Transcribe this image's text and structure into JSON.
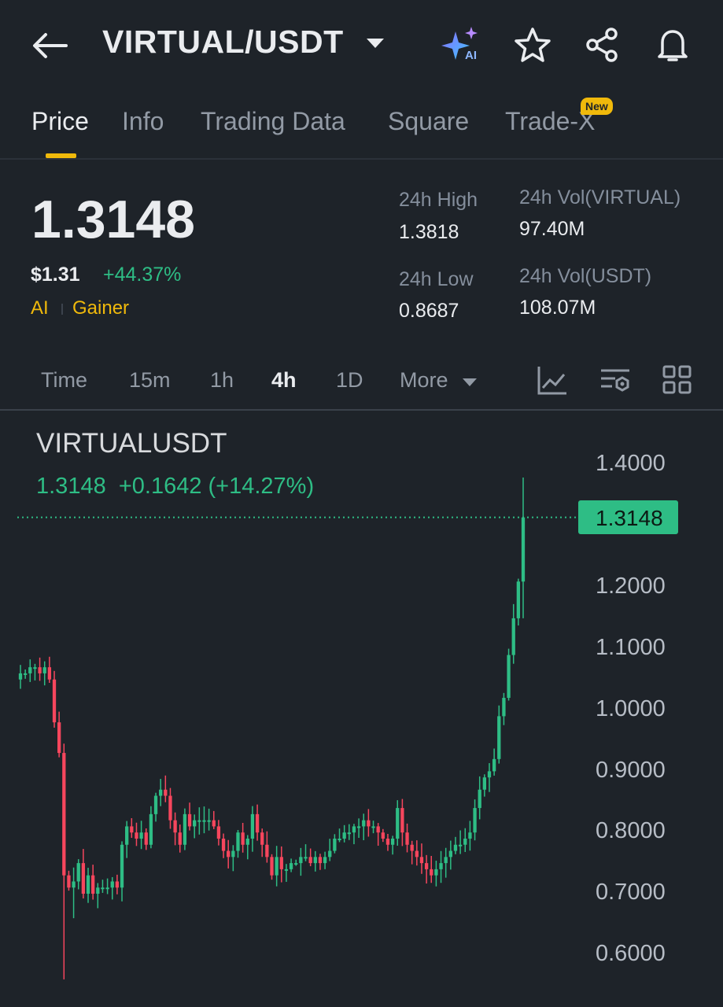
{
  "header": {
    "pair": "VIRTUAL/USDT",
    "icons": [
      "back-arrow-icon",
      "chevron-down-icon",
      "ai-sparkle-icon",
      "star-icon",
      "share-icon",
      "bell-icon"
    ],
    "ai_badge": "AI"
  },
  "tabs": [
    {
      "label": "Price",
      "active": true
    },
    {
      "label": "Info"
    },
    {
      "label": "Trading Data"
    },
    {
      "label": "Square"
    },
    {
      "label": "Trade-X",
      "badge": "New"
    }
  ],
  "ticker": {
    "last_price": "1.3148",
    "usd_price": "$1.31",
    "change_24h": "+44.37%",
    "tags": [
      "AI",
      "Gainer"
    ],
    "high_label": "24h High",
    "high_value": "1.3818",
    "low_label": "24h Low",
    "low_value": "0.8687",
    "vol_base_label": "24h Vol(VIRTUAL)",
    "vol_base_value": "97.40M",
    "vol_quote_label": "24h Vol(USDT)",
    "vol_quote_value": "108.07M"
  },
  "timeframes": {
    "items": [
      "Time",
      "15m",
      "1h",
      "4h",
      "1D",
      "More"
    ],
    "active": "4h",
    "tools": [
      "indicator-chart-icon",
      "chart-settings-icon",
      "grid-layout-icon"
    ]
  },
  "chart": {
    "symbol": "VIRTUALUSDT",
    "last": "1.3148",
    "change": "+0.1642 (+14.27%)",
    "axis_labels": [
      "1.4000",
      "1.2000",
      "1.1000",
      "1.0000",
      "0.9000",
      "0.8000",
      "0.7000",
      "0.6000"
    ],
    "current_price_tag": "1.3148"
  },
  "colors": {
    "up": "#2ebd85",
    "down": "#f6465d",
    "accent": "#f0b90b",
    "background": "#1e2329"
  },
  "chart_data": {
    "type": "candlestick",
    "ylim": [
      0.56,
      1.42
    ],
    "current_price": 1.3148,
    "axis_ticks": [
      1.4,
      1.3,
      1.2,
      1.1,
      1.0,
      0.9,
      0.8,
      0.7,
      0.6
    ],
    "closes": [
      1.06,
      1.06,
      1.07,
      1.07,
      1.06,
      1.07,
      1.05,
      0.98,
      0.93,
      0.73,
      0.71,
      0.72,
      0.75,
      0.7,
      0.73,
      0.7,
      0.71,
      0.71,
      0.71,
      0.72,
      0.71,
      0.78,
      0.81,
      0.8,
      0.79,
      0.8,
      0.78,
      0.83,
      0.86,
      0.87,
      0.86,
      0.82,
      0.8,
      0.78,
      0.83,
      0.81,
      0.82,
      0.82,
      0.82,
      0.82,
      0.81,
      0.79,
      0.77,
      0.76,
      0.77,
      0.8,
      0.78,
      0.79,
      0.83,
      0.8,
      0.78,
      0.76,
      0.73,
      0.76,
      0.74,
      0.74,
      0.75,
      0.75,
      0.76,
      0.76,
      0.75,
      0.76,
      0.75,
      0.76,
      0.77,
      0.79,
      0.79,
      0.8,
      0.8,
      0.81,
      0.81,
      0.82,
      0.81,
      0.81,
      0.8,
      0.79,
      0.78,
      0.79,
      0.84,
      0.8,
      0.78,
      0.77,
      0.76,
      0.75,
      0.74,
      0.73,
      0.74,
      0.75,
      0.76,
      0.77,
      0.78,
      0.78,
      0.79,
      0.8,
      0.84,
      0.87,
      0.89,
      0.9,
      0.92,
      0.99,
      1.02,
      1.09,
      1.15,
      1.21,
      1.3148
    ]
  }
}
